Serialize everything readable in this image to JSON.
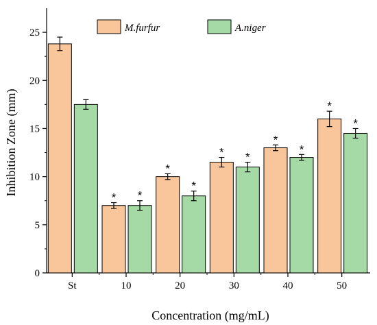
{
  "chart_data": {
    "type": "bar",
    "xlabel": "Concentration (mg/mL)",
    "ylabel": "Inhibition Zone (mm)",
    "ylim": [
      0,
      27.5
    ],
    "yticks": [
      0,
      5,
      10,
      15,
      20,
      25
    ],
    "categories": [
      "St",
      "10",
      "20",
      "30",
      "40",
      "50"
    ],
    "series": [
      {
        "name": "M.furfur",
        "color": "#F9C69B",
        "values": [
          23.8,
          7.0,
          10.0,
          11.5,
          13.0,
          16.0
        ],
        "errors": [
          0.7,
          0.3,
          0.3,
          0.5,
          0.3,
          0.8
        ],
        "significance": [
          "",
          "*",
          "*",
          "*",
          "*",
          "*"
        ]
      },
      {
        "name": "A.niger",
        "color": "#A5D9A5",
        "values": [
          17.5,
          7.0,
          8.0,
          11.0,
          12.0,
          14.5
        ],
        "errors": [
          0.5,
          0.5,
          0.5,
          0.5,
          0.3,
          0.5
        ],
        "significance": [
          "",
          "*",
          "*",
          "*",
          "*",
          "*"
        ]
      }
    ],
    "legend_position": "top-center",
    "grid": false
  }
}
